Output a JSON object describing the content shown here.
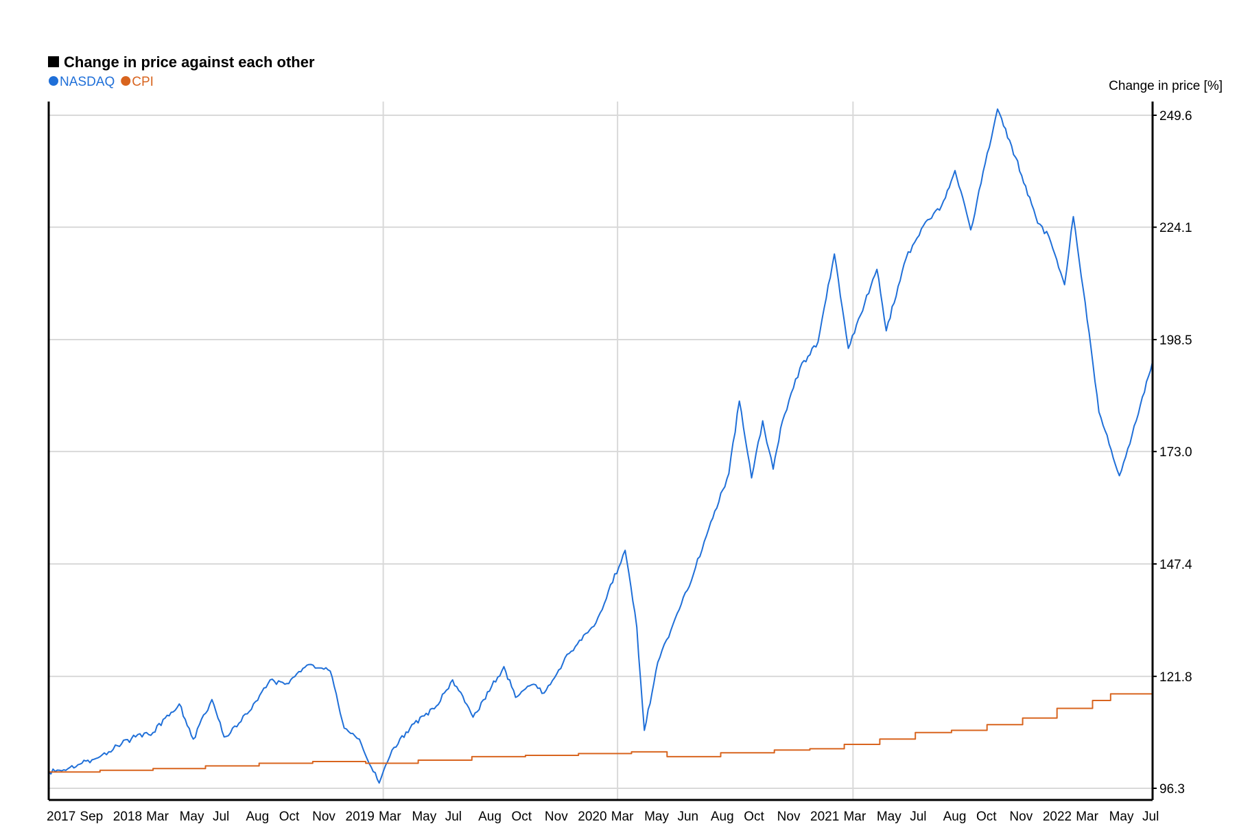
{
  "chart_data": {
    "type": "line",
    "title": "Change in price against each other",
    "ylabel": "Change in price [%]",
    "xlabel": "",
    "ylim": [
      96.3,
      249.6
    ],
    "y_ticks": [
      "249.6",
      "224.1",
      "198.5",
      "173.0",
      "147.4",
      "121.8",
      "96.3"
    ],
    "x_ticks": [
      "2017",
      "Sep",
      "2018",
      "Mar",
      "May",
      "Jul",
      "Aug",
      "Oct",
      "Nov",
      "2019",
      "Mar",
      "May",
      "Jul",
      "Aug",
      "Oct",
      "Nov",
      "2020",
      "Mar",
      "May",
      "Jun",
      "Aug",
      "Oct",
      "Nov",
      "2021",
      "Mar",
      "May",
      "Jul",
      "Aug",
      "Oct",
      "Nov",
      "2022",
      "Mar",
      "May",
      "Jul"
    ],
    "grid": true,
    "legend_position": "top-left",
    "x_range": [
      "2017-06-05",
      "2022-08-12"
    ],
    "series": [
      {
        "name": "NASDAQ",
        "color": "#1f6fd8",
        "points": [
          [
            "2017-06-05",
            100.0
          ],
          [
            "2017-07-01",
            100.5
          ],
          [
            "2017-08-01",
            102.0
          ],
          [
            "2017-09-01",
            103.5
          ],
          [
            "2017-10-01",
            106.0
          ],
          [
            "2017-11-01",
            108.0
          ],
          [
            "2017-12-01",
            109.0
          ],
          [
            "2018-01-15",
            115.5
          ],
          [
            "2018-02-08",
            107.5
          ],
          [
            "2018-03-12",
            116.5
          ],
          [
            "2018-04-02",
            108.0
          ],
          [
            "2018-05-01",
            111.5
          ],
          [
            "2018-06-20",
            121.0
          ],
          [
            "2018-07-15",
            120.0
          ],
          [
            "2018-08-29",
            124.5
          ],
          [
            "2018-10-01",
            123.0
          ],
          [
            "2018-10-25",
            110.0
          ],
          [
            "2018-11-20",
            107.5
          ],
          [
            "2018-12-24",
            97.5
          ],
          [
            "2019-01-15",
            105.0
          ],
          [
            "2019-02-15",
            110.0
          ],
          [
            "2019-04-01",
            115.0
          ],
          [
            "2019-04-29",
            121.0
          ],
          [
            "2019-06-03",
            112.5
          ],
          [
            "2019-07-26",
            124.0
          ],
          [
            "2019-08-15",
            117.0
          ],
          [
            "2019-09-15",
            120.0
          ],
          [
            "2019-10-03",
            118.0
          ],
          [
            "2019-11-15",
            127.0
          ],
          [
            "2019-12-31",
            134.0
          ],
          [
            "2020-02-19",
            150.5
          ],
          [
            "2020-03-10",
            133.0
          ],
          [
            "2020-03-23",
            109.5
          ],
          [
            "2020-04-15",
            125.0
          ],
          [
            "2020-05-15",
            135.0
          ],
          [
            "2020-06-15",
            145.0
          ],
          [
            "2020-07-15",
            157.0
          ],
          [
            "2020-08-15",
            168.0
          ],
          [
            "2020-09-02",
            184.5
          ],
          [
            "2020-09-23",
            167.0
          ],
          [
            "2020-10-12",
            180.0
          ],
          [
            "2020-10-30",
            169.0
          ],
          [
            "2020-11-15",
            180.0
          ],
          [
            "2020-12-15",
            192.0
          ],
          [
            "2021-01-15",
            198.0
          ],
          [
            "2021-02-12",
            218.0
          ],
          [
            "2021-03-08",
            196.5
          ],
          [
            "2021-04-26",
            214.5
          ],
          [
            "2021-05-12",
            200.5
          ],
          [
            "2021-06-15",
            217.0
          ],
          [
            "2021-07-15",
            224.5
          ],
          [
            "2021-08-15",
            229.0
          ],
          [
            "2021-09-07",
            237.0
          ],
          [
            "2021-10-04",
            223.5
          ],
          [
            "2021-11-19",
            251.0
          ],
          [
            "2021-12-20",
            240.0
          ],
          [
            "2022-01-27",
            225.0
          ],
          [
            "2022-02-15",
            222.0
          ],
          [
            "2022-03-14",
            211.0
          ],
          [
            "2022-03-29",
            226.5
          ],
          [
            "2022-04-15",
            210.0
          ],
          [
            "2022-05-12",
            182.0
          ],
          [
            "2022-06-16",
            167.5
          ],
          [
            "2022-07-15",
            180.0
          ],
          [
            "2022-08-12",
            193.5
          ]
        ]
      },
      {
        "name": "CPI",
        "color": "#d8641e",
        "points": [
          [
            "2017-06-05",
            100.0
          ],
          [
            "2017-09-01",
            100.4
          ],
          [
            "2017-12-01",
            100.8
          ],
          [
            "2018-03-01",
            101.4
          ],
          [
            "2018-06-01",
            102.0
          ],
          [
            "2018-09-01",
            102.4
          ],
          [
            "2018-12-01",
            102.0
          ],
          [
            "2019-03-01",
            102.7
          ],
          [
            "2019-06-01",
            103.5
          ],
          [
            "2019-09-01",
            103.8
          ],
          [
            "2019-12-01",
            104.2
          ],
          [
            "2020-03-01",
            104.6
          ],
          [
            "2020-05-01",
            103.5
          ],
          [
            "2020-08-01",
            104.4
          ],
          [
            "2020-11-01",
            105.0
          ],
          [
            "2021-01-01",
            105.3
          ],
          [
            "2021-03-01",
            106.3
          ],
          [
            "2021-05-01",
            107.5
          ],
          [
            "2021-07-01",
            109.0
          ],
          [
            "2021-09-01",
            109.5
          ],
          [
            "2021-11-01",
            110.8
          ],
          [
            "2022-01-01",
            112.3
          ],
          [
            "2022-03-01",
            114.5
          ],
          [
            "2022-05-01",
            116.3
          ],
          [
            "2022-06-01",
            117.8
          ],
          [
            "2022-08-12",
            117.8
          ]
        ]
      }
    ]
  }
}
